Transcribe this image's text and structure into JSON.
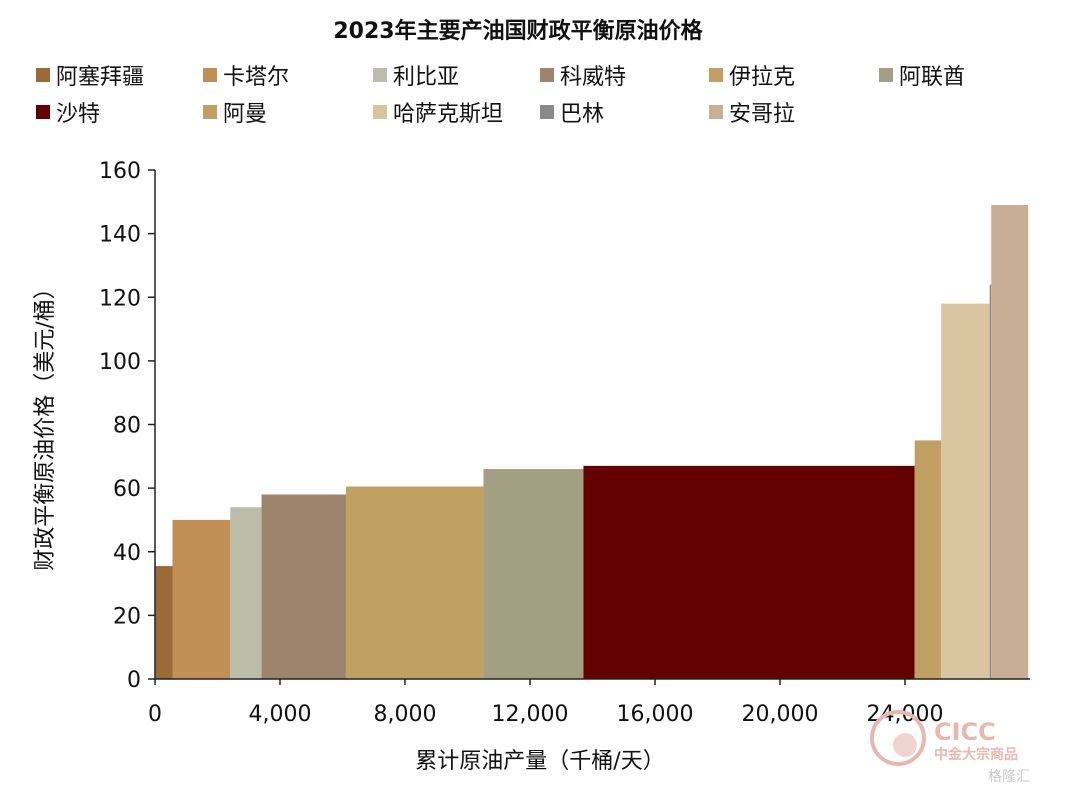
{
  "chart_data": {
    "type": "bar",
    "title": "2023年主要产油国财政平衡原油价格",
    "xlabel": "累计原油产量（千桶/天）",
    "ylabel": "财政平衡原油价格（美元/桶）",
    "xlim": [
      0,
      28000
    ],
    "ylim": [
      0,
      160
    ],
    "xticks": [
      0,
      4000,
      8000,
      12000,
      16000,
      20000,
      24000
    ],
    "xtick_labels": [
      "0",
      "4,000",
      "8,000",
      "12,000",
      "16,000",
      "20,000",
      "24,000"
    ],
    "yticks": [
      0,
      20,
      40,
      60,
      80,
      100,
      120,
      140,
      160
    ],
    "ytick_labels": [
      "0",
      "20",
      "40",
      "60",
      "80",
      "100",
      "120",
      "140",
      "160"
    ],
    "grid": false,
    "legend_position": "top",
    "series": [
      {
        "name": "阿塞拜疆",
        "x_start": 0,
        "width": 560,
        "value": 35.5,
        "color": "#9b6a36"
      },
      {
        "name": "卡塔尔",
        "x_start": 560,
        "width": 1850,
        "value": 50,
        "color": "#c18e55"
      },
      {
        "name": "利比亚",
        "x_start": 2410,
        "width": 1000,
        "value": 54,
        "color": "#bcbcaa"
      },
      {
        "name": "科威特",
        "x_start": 3410,
        "width": 2700,
        "value": 58,
        "color": "#9c856c"
      },
      {
        "name": "伊拉克",
        "x_start": 6110,
        "width": 4400,
        "value": 60.5,
        "color": "#c1a063"
      },
      {
        "name": "阿联酋",
        "x_start": 10510,
        "width": 3200,
        "value": 66,
        "color": "#a29f82"
      },
      {
        "name": "沙特",
        "x_start": 13710,
        "width": 10600,
        "value": 67,
        "color": "#630000"
      },
      {
        "name": "阿曼",
        "x_start": 24310,
        "width": 850,
        "value": 75,
        "color": "#c1a063"
      },
      {
        "name": "哈萨克斯坦",
        "x_start": 25160,
        "width": 1550,
        "value": 118,
        "color": "#d9c5a0"
      },
      {
        "name": "巴林",
        "x_start": 26710,
        "width": 50,
        "value": 124,
        "color": "#8a8a8a"
      },
      {
        "name": "安哥拉",
        "x_start": 26760,
        "width": 1180,
        "value": 149,
        "color": "#c9ae96"
      }
    ]
  },
  "watermark": {
    "brand": "CICC",
    "subtitle": "中金大宗商品",
    "corner": "格隆汇"
  }
}
